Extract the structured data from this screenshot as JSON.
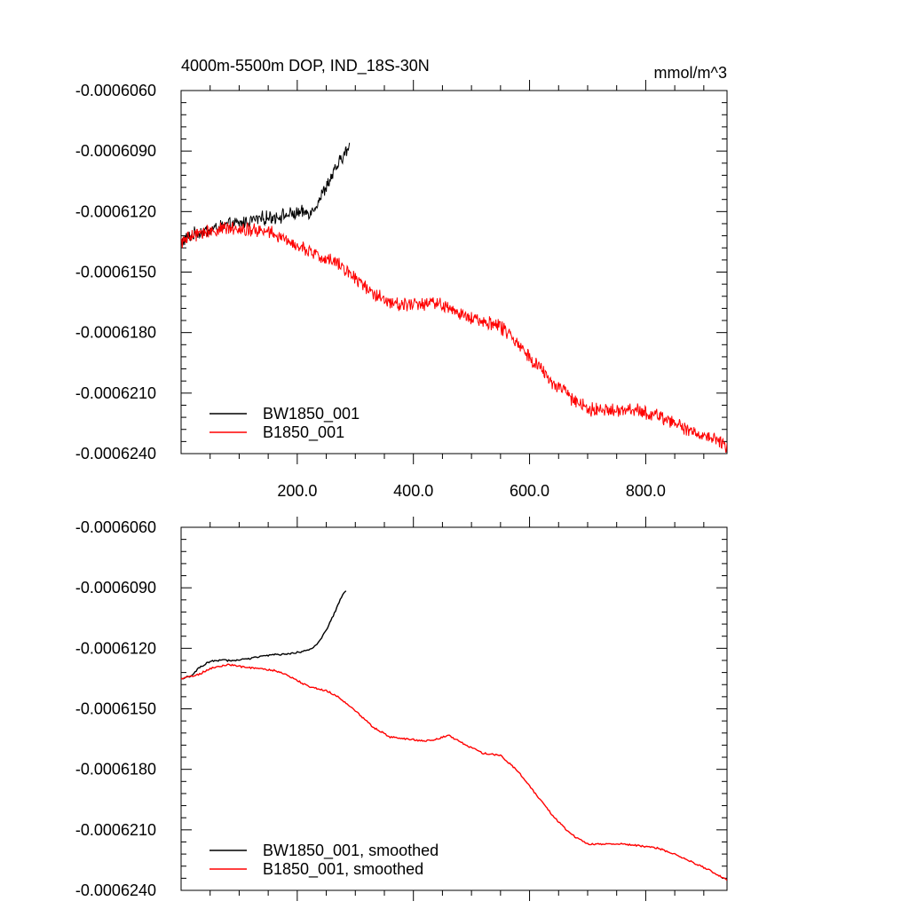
{
  "chart_data": [
    {
      "type": "line",
      "title": "4000m-5500m DOP, IND_18S-30N",
      "units": "mmol/m^3",
      "xlim": [
        0,
        940
      ],
      "ylim": [
        -0.000624,
        -0.000606
      ],
      "x_ticks": [
        200,
        400,
        600,
        800
      ],
      "x_tick_labels": [
        "200.0",
        "400.0",
        "600.0",
        "800.0"
      ],
      "y_ticks": [
        -0.000606,
        -0.000609,
        -0.000612,
        -0.000615,
        -0.000618,
        -0.000621,
        -0.000624
      ],
      "y_tick_labels": [
        "-0.0006060",
        "-0.0006090",
        "-0.0006120",
        "-0.0006150",
        "-0.0006180",
        "-0.0006210",
        "-0.0006240"
      ],
      "legend": "bottom-left",
      "series": [
        {
          "name": "BW1850_001",
          "color": "#000000",
          "noisy": true,
          "x": [
            0,
            25,
            50,
            75,
            100,
            125,
            150,
            175,
            200,
            225,
            240,
            255,
            270,
            280,
            290
          ],
          "y": [
            -0.0006135,
            -0.0006131,
            -0.0006129,
            -0.0006127,
            -0.0006126,
            -0.0006124,
            -0.0006123,
            -0.0006122,
            -0.0006121,
            -0.000612,
            -0.0006113,
            -0.0006105,
            -0.0006097,
            -0.0006092,
            -0.0006088
          ]
        },
        {
          "name": "B1850_001",
          "color": "#ff0000",
          "noisy": true,
          "x": [
            0,
            30,
            60,
            90,
            120,
            150,
            180,
            210,
            240,
            270,
            300,
            330,
            360,
            390,
            420,
            440,
            460,
            490,
            520,
            550,
            580,
            610,
            640,
            670,
            700,
            730,
            760,
            790,
            820,
            850,
            880,
            910,
            940
          ],
          "y": [
            -0.0006135,
            -0.0006131,
            -0.0006129,
            -0.0006128,
            -0.0006129,
            -0.000613,
            -0.0006134,
            -0.0006138,
            -0.0006143,
            -0.0006145,
            -0.0006153,
            -0.000616,
            -0.0006165,
            -0.0006166,
            -0.0006166,
            -0.0006165,
            -0.0006168,
            -0.0006172,
            -0.0006174,
            -0.0006177,
            -0.0006185,
            -0.0006195,
            -0.0006205,
            -0.0006212,
            -0.0006218,
            -0.0006219,
            -0.0006218,
            -0.0006219,
            -0.0006221,
            -0.0006225,
            -0.0006229,
            -0.0006232,
            -0.0006236
          ]
        }
      ]
    },
    {
      "type": "line",
      "title": "",
      "xlim": [
        0,
        940
      ],
      "ylim": [
        -0.000624,
        -0.000606
      ],
      "x_ticks": [
        200,
        400,
        600,
        800
      ],
      "x_tick_labels": [],
      "y_ticks": [
        -0.000606,
        -0.000609,
        -0.000612,
        -0.000615,
        -0.000618,
        -0.000621,
        -0.000624
      ],
      "y_tick_labels": [
        "-0.0006060",
        "-0.0006090",
        "-0.0006120",
        "-0.0006150",
        "-0.0006180",
        "-0.0006210",
        "-0.0006240"
      ],
      "legend": "bottom-left",
      "series": [
        {
          "name": "BW1850_001, smoothed",
          "color": "#000000",
          "noisy": false,
          "x": [
            0,
            15,
            30,
            45,
            60,
            90,
            120,
            140,
            160,
            180,
            200,
            220,
            235,
            250,
            265,
            275,
            285
          ],
          "y": [
            -0.0006135,
            -0.0006134,
            -0.000613,
            -0.0006127,
            -0.0006126,
            -0.0006126,
            -0.0006125,
            -0.0006124,
            -0.0006123,
            -0.0006123,
            -0.0006122,
            -0.0006121,
            -0.0006118,
            -0.0006111,
            -0.0006102,
            -0.0006095,
            -0.0006091
          ]
        },
        {
          "name": "B1850_001, smoothed",
          "color": "#ff0000",
          "noisy": false,
          "x": [
            0,
            15,
            30,
            50,
            80,
            100,
            130,
            160,
            180,
            200,
            220,
            250,
            270,
            300,
            330,
            360,
            390,
            420,
            440,
            460,
            490,
            520,
            550,
            580,
            610,
            640,
            670,
            700,
            730,
            760,
            790,
            820,
            850,
            880,
            910,
            940
          ],
          "y": [
            -0.0006135,
            -0.0006134,
            -0.0006133,
            -0.000613,
            -0.0006128,
            -0.0006129,
            -0.000613,
            -0.0006131,
            -0.0006133,
            -0.0006136,
            -0.0006139,
            -0.0006141,
            -0.0006144,
            -0.0006151,
            -0.0006159,
            -0.0006164,
            -0.0006165,
            -0.0006166,
            -0.0006165,
            -0.0006163,
            -0.0006168,
            -0.0006172,
            -0.0006173,
            -0.0006181,
            -0.0006192,
            -0.0006203,
            -0.0006212,
            -0.0006217,
            -0.0006217,
            -0.0006217,
            -0.0006218,
            -0.0006219,
            -0.0006222,
            -0.0006226,
            -0.000623,
            -0.0006235
          ]
        }
      ]
    }
  ]
}
